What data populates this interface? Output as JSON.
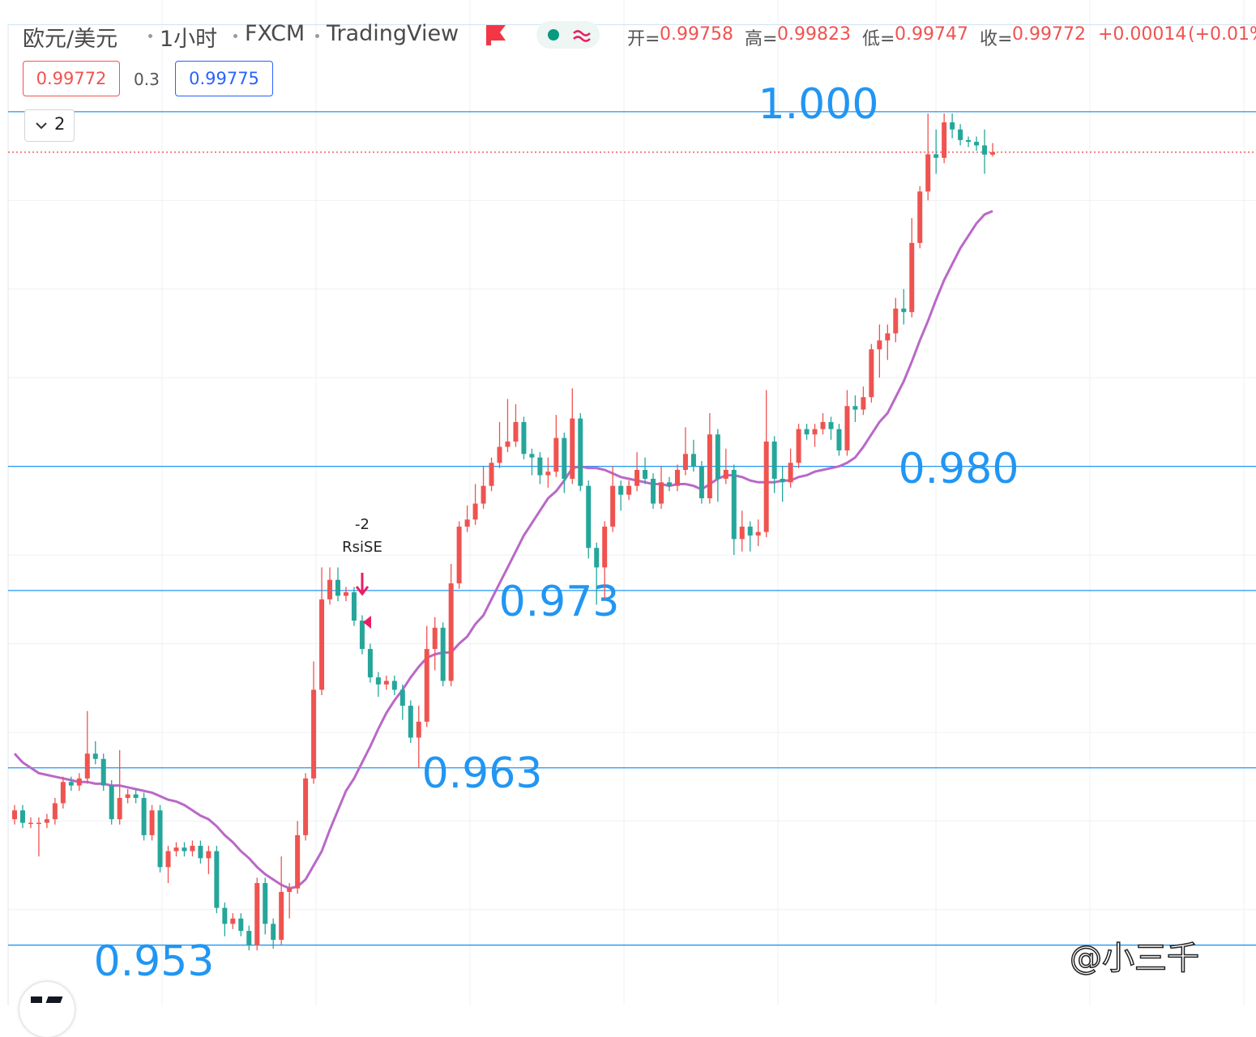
{
  "chart_data": {
    "type": "candlestick",
    "title": "欧元/美元",
    "interval": "1小时",
    "exchange": "FXCM",
    "platform": "TradingView",
    "ohlc_labels": [
      "开=",
      "高=",
      "低=",
      "收="
    ],
    "change": "+0.00014",
    "change_pct": "(+0.01%",
    "spread": 0.3,
    "ask": 0.99775,
    "indicator_count": 2,
    "signal_text": [
      "-2",
      "RsiSE"
    ],
    "watermark": "@小三千",
    "up_color": "#ef5350",
    "down_color": "#26a69a",
    "last_price_color": "#ef5350",
    "ylim": [
      0.9496,
      1.0063
    ],
    "ygrid": [
      0.995,
      0.99,
      0.985,
      0.98,
      0.975,
      0.97,
      0.965,
      0.96,
      0.955
    ],
    "levels": [
      {
        "value": 1,
        "label": "1.000"
      },
      {
        "value": 0.98,
        "label": "0.980"
      },
      {
        "value": 0.973,
        "label": "0.973"
      },
      {
        "value": 0.963,
        "label": "0.963"
      },
      {
        "value": 0.953,
        "label": "0.953"
      }
    ],
    "level_color": "#2196f3",
    "open": [
      0.9601,
      0.9606,
      0.9599,
      0.9599,
      0.9599,
      0.9601,
      0.961,
      0.9622,
      0.962,
      0.9624,
      0.9638,
      0.9635,
      0.962,
      0.9601,
      0.9613,
      0.9615,
      0.9613,
      0.9592,
      0.9606,
      0.9574,
      0.9583,
      0.9585,
      0.9583,
      0.9586,
      0.9579,
      0.9583,
      0.9551,
      0.9542,
      0.9545,
      0.9538,
      0.953,
      0.9565,
      0.9542,
      0.9533,
      0.956,
      0.9562,
      0.9592,
      0.9624,
      0.9674,
      0.9725,
      0.9736,
      0.9727,
      0.9729,
      0.9713,
      0.9697,
      0.9681,
      0.9677,
      0.9679,
      0.9674,
      0.9665,
      0.9647,
      0.9656,
      0.9697,
      0.9709,
      0.9679,
      0.9734,
      0.9766,
      0.977,
      0.9779,
      0.9789,
      0.9802,
      0.9811,
      0.9814,
      0.9825,
      0.9807,
      0.9805,
      0.9795,
      0.9797,
      0.9816,
      0.9793,
      0.9827,
      0.9789,
      0.9754,
      0.9743,
      0.9766,
      0.9789,
      0.9784,
      0.9789,
      0.9798,
      0.9793,
      0.9779,
      0.9791,
      0.9789,
      0.9798,
      0.9807,
      0.98,
      0.9782,
      0.9818,
      0.9793,
      0.9798,
      0.9759,
      0.9766,
      0.9761,
      0.9763,
      0.9814,
      0.9793,
      0.9791,
      0.9802,
      0.9821,
      0.9818,
      0.9821,
      0.9825,
      0.9821,
      0.9809,
      0.9834,
      0.9832,
      0.9839,
      0.9866,
      0.9871,
      0.9875,
      0.9889,
      0.9887,
      0.9926,
      0.9955,
      0.9976,
      0.9974,
      0.9994,
      0.999,
      0.9984,
      0.9983,
      0.9981,
      0.99758
    ],
    "high": [
      0.9609,
      0.9609,
      0.9602,
      0.9602,
      0.9604,
      0.9613,
      0.9625,
      0.9625,
      0.9627,
      0.9662,
      0.9645,
      0.9638,
      0.9623,
      0.964,
      0.9618,
      0.9618,
      0.9616,
      0.9609,
      0.9609,
      0.9586,
      0.9588,
      0.9588,
      0.9589,
      0.9589,
      0.9586,
      0.9586,
      0.9554,
      0.9548,
      0.9548,
      0.9541,
      0.9568,
      0.9568,
      0.9545,
      0.958,
      0.9565,
      0.96,
      0.9627,
      0.969,
      0.9743,
      0.9743,
      0.9743,
      0.9732,
      0.9732,
      0.9716,
      0.97,
      0.9684,
      0.9682,
      0.9682,
      0.9677,
      0.9668,
      0.9665,
      0.971,
      0.9715,
      0.9712,
      0.9745,
      0.9769,
      0.9778,
      0.979,
      0.98,
      0.9805,
      0.9825,
      0.9838,
      0.9835,
      0.9828,
      0.981,
      0.9808,
      0.9805,
      0.9829,
      0.9819,
      0.9844,
      0.983,
      0.9792,
      0.9757,
      0.9769,
      0.98,
      0.9792,
      0.9792,
      0.9808,
      0.9805,
      0.9796,
      0.98,
      0.9794,
      0.9801,
      0.9822,
      0.9815,
      0.9803,
      0.983,
      0.9821,
      0.981,
      0.9801,
      0.9775,
      0.9769,
      0.977,
      0.9843,
      0.9817,
      0.98,
      0.981,
      0.9824,
      0.9824,
      0.9824,
      0.983,
      0.9828,
      0.9824,
      0.9843,
      0.984,
      0.9845,
      0.9869,
      0.988,
      0.988,
      0.9895,
      0.99,
      0.994,
      0.9958,
      0.9999,
      0.999,
      0.9999,
      0.9999,
      0.9993,
      0.9986,
      0.9986,
      0.999,
      0.99823
    ],
    "low": [
      0.9598,
      0.9596,
      0.9596,
      0.958,
      0.9596,
      0.9598,
      0.9607,
      0.9617,
      0.9617,
      0.9621,
      0.9632,
      0.9617,
      0.9598,
      0.9598,
      0.961,
      0.961,
      0.9589,
      0.9589,
      0.9571,
      0.9565,
      0.958,
      0.958,
      0.958,
      0.9576,
      0.957,
      0.9548,
      0.9535,
      0.9539,
      0.9535,
      0.9527,
      0.9527,
      0.9536,
      0.9528,
      0.953,
      0.9545,
      0.9559,
      0.9589,
      0.9621,
      0.9671,
      0.9722,
      0.9724,
      0.9724,
      0.971,
      0.9694,
      0.9678,
      0.967,
      0.9674,
      0.9671,
      0.9657,
      0.9644,
      0.963,
      0.9653,
      0.9685,
      0.9676,
      0.9676,
      0.9731,
      0.9763,
      0.9767,
      0.9776,
      0.9786,
      0.9799,
      0.9808,
      0.9811,
      0.9804,
      0.9795,
      0.979,
      0.9788,
      0.9794,
      0.9785,
      0.979,
      0.9786,
      0.9748,
      0.9722,
      0.9725,
      0.9763,
      0.9775,
      0.9781,
      0.9786,
      0.979,
      0.9776,
      0.9776,
      0.9786,
      0.9786,
      0.9795,
      0.9797,
      0.9779,
      0.9779,
      0.978,
      0.979,
      0.975,
      0.9752,
      0.9752,
      0.9755,
      0.976,
      0.9785,
      0.978,
      0.9788,
      0.9799,
      0.9815,
      0.9811,
      0.9818,
      0.9815,
      0.9806,
      0.9806,
      0.9825,
      0.9829,
      0.9836,
      0.985,
      0.986,
      0.987,
      0.988,
      0.9884,
      0.9923,
      0.995,
      0.9965,
      0.9971,
      0.9985,
      0.9981,
      0.998,
      0.9978,
      0.9965,
      0.99747
    ],
    "close": [
      0.9606,
      0.9599,
      0.9599,
      0.9599,
      0.9601,
      0.961,
      0.9622,
      0.962,
      0.9624,
      0.9638,
      0.9635,
      0.962,
      0.9601,
      0.9613,
      0.9615,
      0.9613,
      0.9592,
      0.9606,
      0.9574,
      0.9583,
      0.9585,
      0.9583,
      0.9586,
      0.9579,
      0.9583,
      0.9551,
      0.9542,
      0.9545,
      0.9538,
      0.953,
      0.9565,
      0.9542,
      0.9533,
      0.956,
      0.9562,
      0.9592,
      0.9624,
      0.9674,
      0.9725,
      0.9736,
      0.9727,
      0.9729,
      0.9713,
      0.9697,
      0.9681,
      0.9677,
      0.9679,
      0.9674,
      0.9665,
      0.9647,
      0.9656,
      0.9697,
      0.9709,
      0.9679,
      0.9734,
      0.9766,
      0.977,
      0.9779,
      0.9789,
      0.9802,
      0.9811,
      0.9814,
      0.9825,
      0.9807,
      0.9805,
      0.9795,
      0.9797,
      0.9816,
      0.9793,
      0.9827,
      0.9789,
      0.9754,
      0.9743,
      0.9766,
      0.9789,
      0.9784,
      0.9789,
      0.9798,
      0.9793,
      0.9779,
      0.9791,
      0.9789,
      0.9798,
      0.9807,
      0.98,
      0.9782,
      0.9818,
      0.9793,
      0.9798,
      0.9759,
      0.9766,
      0.9761,
      0.9763,
      0.9814,
      0.9793,
      0.9791,
      0.9802,
      0.9821,
      0.9818,
      0.9821,
      0.9825,
      0.9821,
      0.9809,
      0.9834,
      0.9832,
      0.9839,
      0.9866,
      0.9871,
      0.9875,
      0.9889,
      0.9887,
      0.9926,
      0.9955,
      0.9976,
      0.9974,
      0.9994,
      0.999,
      0.9984,
      0.9983,
      0.9981,
      0.99758,
      0.99772
    ],
    "ma": {
      "color": "#ba68c8",
      "values": [
        0.9638,
        0.9633,
        0.963,
        0.9627,
        0.9626,
        0.9625,
        0.9624,
        0.9623,
        0.9622,
        0.9622,
        0.9621,
        0.9621,
        0.962,
        0.962,
        0.9619,
        0.9618,
        0.9617,
        0.9616,
        0.9614,
        0.9612,
        0.9611,
        0.9609,
        0.9606,
        0.9603,
        0.9601,
        0.9597,
        0.9592,
        0.9588,
        0.9583,
        0.9579,
        0.9574,
        0.957,
        0.9567,
        0.9564,
        0.9562,
        0.9563,
        0.9567,
        0.9575,
        0.9583,
        0.9595,
        0.9606,
        0.9617,
        0.9624,
        0.9633,
        0.9642,
        0.9652,
        0.9661,
        0.9668,
        0.9674,
        0.9681,
        0.9687,
        0.9692,
        0.9694,
        0.9695,
        0.9695,
        0.97,
        0.9704,
        0.9711,
        0.9716,
        0.9725,
        0.9734,
        0.9743,
        0.9752,
        0.9761,
        0.9768,
        0.9775,
        0.9782,
        0.9786,
        0.9792,
        0.9799,
        0.98,
        0.9799,
        0.9799,
        0.9798,
        0.9796,
        0.9794,
        0.9793,
        0.9792,
        0.9791,
        0.979,
        0.979,
        0.9789,
        0.979,
        0.979,
        0.9789,
        0.9787,
        0.979,
        0.9793,
        0.9795,
        0.9795,
        0.9794,
        0.9792,
        0.9791,
        0.9791,
        0.9791,
        0.9792,
        0.9792,
        0.9794,
        0.9795,
        0.9797,
        0.9798,
        0.9799,
        0.98,
        0.9802,
        0.9805,
        0.9811,
        0.9818,
        0.9825,
        0.983,
        0.9839,
        0.9848,
        0.9859,
        0.9871,
        0.9882,
        0.9894,
        0.9905,
        0.9914,
        0.9923,
        0.993,
        0.9937,
        0.9942,
        0.9944
      ]
    }
  }
}
